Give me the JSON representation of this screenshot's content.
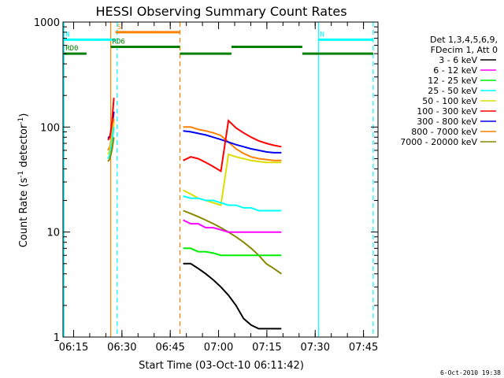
{
  "chart_data": {
    "type": "line",
    "title": "HESSI Observing Summary Count Rates",
    "xlabel": "Start Time (03-Oct-10 06:11:42)",
    "ylabel_main": "Count Rate (s",
    "ylabel_sup1": "-1",
    "ylabel_mid": " detector",
    "ylabel_sup2": "-1",
    "ylabel_end": ")",
    "y_scale": "log",
    "ylim": [
      1,
      1000
    ],
    "xlim": [
      "06:11:42",
      "07:49:30"
    ],
    "x_ticks": [
      "06:15",
      "06:30",
      "06:45",
      "07:00",
      "07:15",
      "07:30",
      "07:45"
    ],
    "y_ticks": [
      "1",
      "10",
      "100",
      "1000"
    ],
    "timestamp": "6-Oct-2010 19:38",
    "legend": {
      "header": [
        "Det 1,3,4,5,6,9,",
        "FDecim 1, Att 0"
      ],
      "entries": [
        {
          "label": "3 - 6 keV",
          "color": "#000000"
        },
        {
          "label": "6 - 12 keV",
          "color": "#ff00ff"
        },
        {
          "label": "12 - 25 keV",
          "color": "#00ee00"
        },
        {
          "label": "25 - 50 keV",
          "color": "#00ffff"
        },
        {
          "label": "50 - 100 keV",
          "color": "#dddd00"
        },
        {
          "label": "100 - 300 keV",
          "color": "#ff0000"
        },
        {
          "label": "300 - 800 keV",
          "color": "#0000ee"
        },
        {
          "label": "800 - 7000 keV",
          "color": "#ff8000"
        },
        {
          "label": "7000 - 20000 keV",
          "color": "#888800"
        }
      ]
    },
    "flags": [
      {
        "label": "S",
        "color": "#ff8000",
        "start": "06:28:00",
        "end": "06:48:00",
        "level": 800
      },
      {
        "label": "N",
        "color": "#00ffff",
        "start": "06:12:00",
        "end": "06:28:00",
        "level": 680
      },
      {
        "label": "N",
        "color": "#00ffff",
        "start": "07:31:00",
        "end": "07:48:00",
        "level": 680
      },
      {
        "label": "RD0",
        "color": "#008000",
        "start": "06:12:00",
        "end": "06:19:00",
        "level": 500
      },
      {
        "label": "RD6",
        "color": "#008000",
        "start": "06:26:30",
        "end": "06:48:00",
        "level": 580
      },
      {
        "label": "",
        "color": "#008000",
        "start": "06:48:00",
        "end": "07:04:00",
        "level": 500
      },
      {
        "label": "",
        "color": "#008000",
        "start": "07:04:00",
        "end": "07:26:00",
        "level": 580
      },
      {
        "label": "",
        "color": "#008000",
        "start": "07:26:00",
        "end": "07:48:00",
        "level": 500
      }
    ],
    "vlines": [
      {
        "t": "06:12:00",
        "color": "#00ffff",
        "style": "solid"
      },
      {
        "t": "06:26:30",
        "color": "#ff8000",
        "style": "solid"
      },
      {
        "t": "06:28:30",
        "color": "#00ffff",
        "style": "dashed"
      },
      {
        "t": "06:48:00",
        "color": "#ff8000",
        "style": "dashed"
      },
      {
        "t": "07:31:00",
        "color": "#00ffff",
        "style": "solid"
      },
      {
        "t": "07:48:00",
        "color": "#00ffff",
        "style": "dashed"
      }
    ],
    "segments": [
      {
        "start": "06:25:40",
        "end": "06:27:30",
        "series": [
          {
            "color": "#0000ee",
            "values": [
              78,
              82,
              100,
              140
            ]
          },
          {
            "color": "#ff0000",
            "values": [
              75,
              80,
              110,
              190
            ]
          },
          {
            "color": "#ff8000",
            "values": [
              60,
              65,
              85,
              120
            ]
          },
          {
            "color": "#dddd00",
            "values": [
              55,
              60,
              80,
              110
            ]
          },
          {
            "color": "#00ffff",
            "values": [
              50,
              55,
              70,
              100
            ]
          },
          {
            "color": "#888800",
            "values": [
              47,
              50,
              60,
              80
            ]
          }
        ]
      },
      {
        "start": "06:49:00",
        "end": "07:19:30",
        "series": [
          {
            "color": "#ff8000",
            "values": [
              100,
              100,
              95,
              92,
              88,
              83,
              72,
              62,
              56,
              52,
              50,
              49,
              48,
              48
            ]
          },
          {
            "color": "#0000ee",
            "values": [
              92,
              90,
              87,
              84,
              80,
              76,
              72,
              68,
              65,
              62,
              60,
              58,
              57,
              57
            ]
          },
          {
            "color": "#ff0000",
            "values": [
              48,
              52,
              50,
              46,
              42,
              38,
              115,
              98,
              88,
              80,
              74,
              70,
              67,
              65
            ]
          },
          {
            "color": "#dddd00",
            "values": [
              25,
              23,
              21,
              20,
              19,
              18,
              55,
              52,
              50,
              48,
              47,
              46,
              46,
              46
            ]
          },
          {
            "color": "#00ffff",
            "values": [
              22,
              21,
              21,
              20,
              20,
              19,
              18,
              18,
              17,
              17,
              16,
              16,
              16,
              16
            ]
          },
          {
            "color": "#888800",
            "values": [
              16,
              15,
              14,
              13,
              12,
              11,
              10,
              9,
              8,
              7,
              6,
              5,
              4.5,
              4
            ]
          },
          {
            "color": "#ff00ff",
            "values": [
              13,
              12,
              12,
              11,
              11,
              10.5,
              10,
              10,
              10,
              10,
              10,
              10,
              10,
              10
            ]
          },
          {
            "color": "#00ee00",
            "values": [
              7,
              7,
              6.5,
              6.5,
              6.3,
              6,
              6,
              6,
              6,
              6,
              6,
              6,
              6,
              6
            ]
          },
          {
            "color": "#000000",
            "values": [
              5,
              5,
              4.5,
              4,
              3.5,
              3,
              2.5,
              2,
              1.5,
              1.3,
              1.2,
              1.2,
              1.2,
              1.2
            ]
          }
        ]
      }
    ]
  }
}
